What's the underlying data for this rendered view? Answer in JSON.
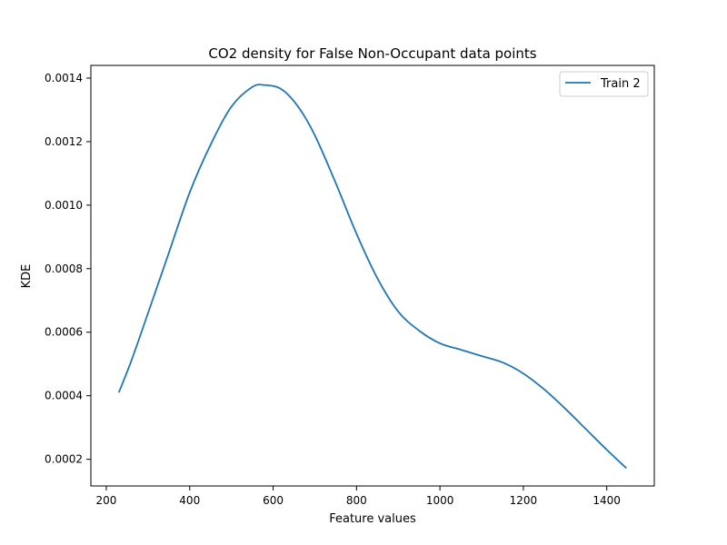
{
  "chart_data": {
    "type": "line",
    "title": "CO2 density for False Non-Occupant data points",
    "xlabel": "Feature values",
    "ylabel": "KDE",
    "xlim": [
      163,
      1514
    ],
    "ylim": [
      0.000116,
      0.00144
    ],
    "xticks": [
      200,
      400,
      600,
      800,
      1000,
      1200,
      1400
    ],
    "xtick_labels": [
      "200",
      "400",
      "600",
      "800",
      "1000",
      "1200",
      "1400"
    ],
    "yticks": [
      0.0002,
      0.0004,
      0.0006,
      0.0008,
      0.001,
      0.0012,
      0.0014
    ],
    "ytick_labels": [
      "0.0002",
      "0.0004",
      "0.0006",
      "0.0008",
      "0.0010",
      "0.0012",
      "0.0014"
    ],
    "grid": false,
    "legend_position": "top-right",
    "series": [
      {
        "name": "Train 2",
        "color": "#1f77b4",
        "x": [
          230,
          260,
          300,
          350,
          400,
          450,
          500,
          550,
          580,
          620,
          660,
          700,
          750,
          800,
          850,
          900,
          950,
          1000,
          1050,
          1100,
          1150,
          1200,
          1250,
          1300,
          1350,
          1400,
          1447
        ],
        "y": [
          0.00041,
          0.00051,
          0.00066,
          0.00085,
          0.00104,
          0.00119,
          0.00131,
          0.001372,
          0.001378,
          0.001365,
          0.00131,
          0.00122,
          0.00107,
          0.00091,
          0.00077,
          0.000665,
          0.000605,
          0.000565,
          0.000545,
          0.000525,
          0.000505,
          0.00047,
          0.00042,
          0.00036,
          0.000295,
          0.00023,
          0.000172
        ]
      }
    ]
  }
}
